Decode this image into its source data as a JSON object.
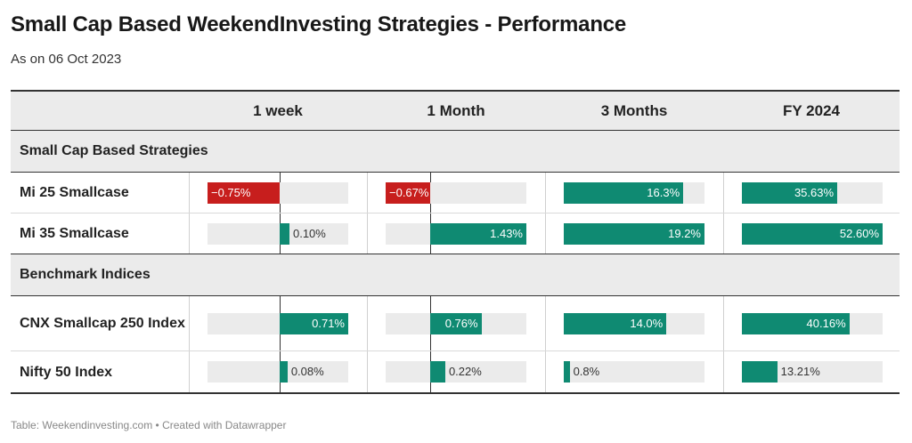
{
  "title": "Small Cap Based WeekendInvesting Strategies - Performance",
  "subtitle": "As on 06 Oct 2023",
  "footer": "Table: Weekendinvesting.com • Created with Datawrapper",
  "colors": {
    "positive": "#0f8a72",
    "negative": "#c71e1d",
    "track": "#ebebeb",
    "header_bg": "#ebebeb"
  },
  "chart_data": {
    "type": "table",
    "columns": [
      "1 week",
      "1 Month",
      "3 Months",
      "FY 2024"
    ],
    "column_ranges": [
      [
        -0.75,
        0.71
      ],
      [
        -0.67,
        1.43
      ],
      [
        0,
        19.2
      ],
      [
        0,
        52.6
      ]
    ],
    "groups": [
      {
        "label": "Small Cap Based Strategies",
        "rows": [
          {
            "label": "Mi 25 Smallcase",
            "values": [
              -0.75,
              -0.67,
              16.3,
              35.63
            ],
            "display": [
              "−0.75%",
              "−0.67%",
              "16.3%",
              "35.63%"
            ]
          },
          {
            "label": "Mi 35 Smallcase",
            "values": [
              0.1,
              1.43,
              19.2,
              52.6
            ],
            "display": [
              "0.10%",
              "1.43%",
              "19.2%",
              "52.60%"
            ]
          }
        ]
      },
      {
        "label": "Benchmark Indices",
        "rows": [
          {
            "label": "CNX Smallcap 250 Index",
            "values": [
              0.71,
              0.76,
              14.0,
              40.16
            ],
            "display": [
              "0.71%",
              "0.76%",
              "14.0%",
              "40.16%"
            ]
          },
          {
            "label": "Nifty 50 Index",
            "values": [
              0.08,
              0.22,
              0.8,
              13.21
            ],
            "display": [
              "0.08%",
              "0.22%",
              "0.8%",
              "13.21%"
            ]
          }
        ]
      }
    ]
  }
}
